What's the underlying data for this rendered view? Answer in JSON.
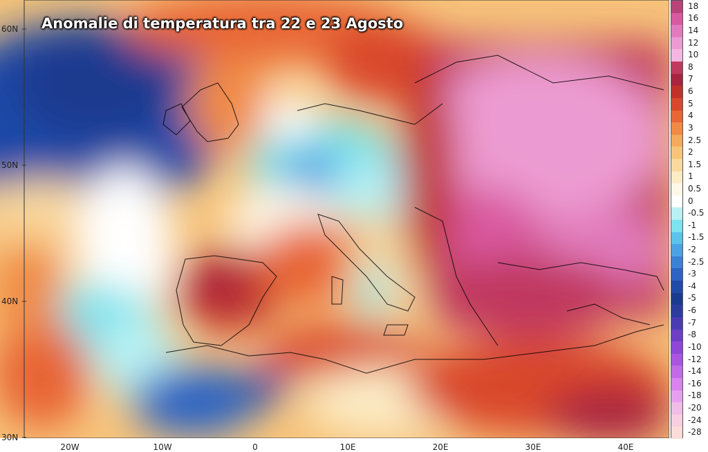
{
  "title": "Anomalie di temperatura tra 22 e 23 Agosto",
  "lat_labels": [
    "60N",
    "50N",
    "40N",
    "30N"
  ],
  "lon_labels": [
    "20W",
    "10W",
    "0",
    "10E",
    "20E",
    "30E",
    "40E"
  ],
  "legend": {
    "labels": [
      "18",
      "16",
      "14",
      "12",
      "10",
      "8",
      "7",
      "6",
      "5",
      "4",
      "3",
      "2.5",
      "2",
      "1.5",
      "1",
      "0.5",
      "0",
      "-0.5",
      "-1",
      "-1.5",
      "-2",
      "-2.5",
      "-3",
      "-4",
      "-5",
      "-6",
      "-7",
      "-8",
      "-10",
      "-12",
      "-14",
      "-16",
      "-18",
      "-20",
      "-24",
      "-28"
    ],
    "colors": [
      "#b8447a",
      "#d95aa0",
      "#e27bbd",
      "#ec9bd2",
      "#f4b7e0",
      "#c0395f",
      "#a8243f",
      "#c0312a",
      "#d9472c",
      "#e86535",
      "#f08a44",
      "#f4a95c",
      "#f7c47a",
      "#fad99e",
      "#fcecc6",
      "#fff7e8",
      "#ffffff",
      "#b9f2f4",
      "#7de3ec",
      "#5cc3ea",
      "#4ba3e3",
      "#3a82d6",
      "#2c63c4",
      "#1f4aa8",
      "#1a3b8f",
      "#2d3c9e",
      "#4b3bb3",
      "#6d3fc7",
      "#8e47d6",
      "#aa55e0",
      "#c26ae8",
      "#d883ee",
      "#e7a0f0",
      "#f0bde6",
      "#f7cfe0",
      "#fbdcd8"
    ]
  }
}
